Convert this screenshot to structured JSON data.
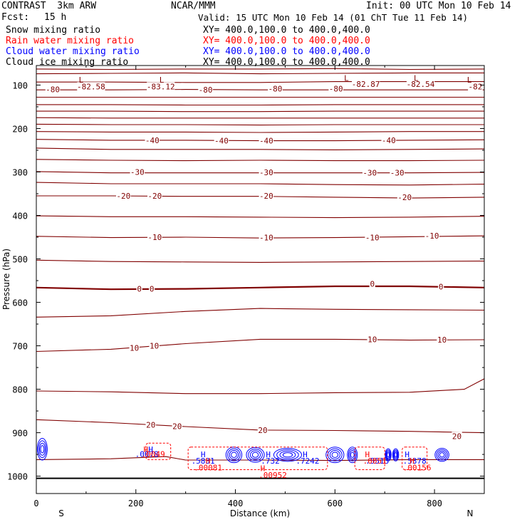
{
  "header": {
    "project": "CONTRAST  3km ARW",
    "org": "NCAR/MMM",
    "init": "Init: 00 UTC Mon 10 Feb 14",
    "fcst_label": "Fcst:",
    "fcst_value": "15 h",
    "valid": "Valid: 15 UTC Mon 10 Feb 14 (01 ChT Tue 11 Feb 14)"
  },
  "legend": [
    {
      "label": "Snow mixing ratio",
      "xy": "XY= 400.0,100.0 to 400.0,400.0",
      "color": "#000000"
    },
    {
      "label": "Rain water mixing ratio",
      "xy": "XY= 400.0,100.0 to 400.0,400.0",
      "color": "#ff0000"
    },
    {
      "label": "Cloud water mixing ratio",
      "xy": "XY= 400.0,100.0 to 400.0,400.0",
      "color": "#0000ff"
    },
    {
      "label": "Cloud ice mixing ratio",
      "xy": "XY= 400.0,100.0 to 400.0,400.0",
      "color": "#000000"
    }
  ],
  "chart_data": {
    "type": "line",
    "title": "",
    "xlabel": "Distance (km)",
    "ylabel": "Pressure (hPa)",
    "xlim": [
      0,
      900
    ],
    "ylim": [
      1040,
      55
    ],
    "x_ticks": [
      0,
      200,
      400,
      600,
      800
    ],
    "y_ticks": [
      100,
      200,
      300,
      400,
      500,
      600,
      700,
      800,
      900,
      1000
    ],
    "x_end_labels": {
      "left": "S",
      "right": "N"
    },
    "series_colors": {
      "temperature": "#800000",
      "cloud": "#0000ff",
      "rain": "#ff0000"
    },
    "contours": [
      {
        "x": [
          0,
          150,
          300,
          450,
          600,
          750,
          900
        ],
        "p": [
          63,
          64,
          63,
          63,
          62,
          64,
          63
        ]
      },
      {
        "x": [
          0,
          150,
          300,
          450,
          600,
          750,
          900
        ],
        "p": [
          74,
          73,
          72,
          74,
          73,
          72,
          72
        ]
      },
      {
        "x": [
          0,
          150,
          300,
          450,
          600,
          750,
          900
        ],
        "p": [
          93,
          93,
          94,
          94,
          92,
          92,
          92
        ]
      },
      {
        "x": [
          0,
          150,
          300,
          450,
          600,
          750,
          900
        ],
        "p": [
          111,
          111,
          110,
          111,
          111,
          111,
          111
        ]
      },
      {
        "x": [
          0,
          150,
          300,
          450,
          600,
          750,
          900
        ],
        "p": [
          128,
          128,
          128,
          128,
          128,
          128,
          128
        ]
      },
      {
        "x": [
          0,
          150,
          300,
          450,
          600,
          750,
          900
        ],
        "p": [
          145,
          145,
          146,
          146,
          145,
          145,
          145
        ]
      },
      {
        "x": [
          0,
          150,
          300,
          450,
          600,
          750,
          900
        ],
        "p": [
          160,
          160,
          161,
          161,
          160,
          160,
          160
        ]
      },
      {
        "x": [
          0,
          150,
          300,
          450,
          600,
          750,
          900
        ],
        "p": [
          175,
          176,
          176,
          176,
          176,
          176,
          176
        ]
      },
      {
        "x": [
          0,
          150,
          300,
          450,
          600,
          750,
          900
        ],
        "p": [
          190,
          191,
          191,
          192,
          191,
          191,
          191
        ]
      },
      {
        "x": [
          0,
          150,
          300,
          450,
          600,
          750,
          900
        ],
        "p": [
          207,
          208,
          208,
          209,
          208,
          207,
          207
        ]
      },
      {
        "x": [
          0,
          150,
          300,
          450,
          600,
          750,
          900
        ],
        "p": [
          225,
          227,
          227,
          228,
          228,
          227,
          226
        ]
      },
      {
        "x": [
          0,
          150,
          300,
          450,
          600,
          750,
          900
        ],
        "p": [
          245,
          248,
          248,
          248,
          249,
          248,
          247
        ]
      },
      {
        "x": [
          0,
          150,
          300,
          450,
          600,
          750,
          900
        ],
        "p": [
          271,
          273,
          274,
          273,
          274,
          274,
          273
        ]
      },
      {
        "x": [
          0,
          150,
          300,
          450,
          600,
          750,
          900
        ],
        "p": [
          299,
          302,
          302,
          302,
          302,
          302,
          301
        ]
      },
      {
        "x": [
          0,
          150,
          300,
          450,
          600,
          750,
          900
        ],
        "p": [
          324,
          327,
          327,
          327,
          329,
          330,
          328
        ]
      },
      {
        "x": [
          0,
          150,
          300,
          450,
          600,
          750,
          900
        ],
        "p": [
          355,
          355,
          356,
          356,
          358,
          360,
          358
        ]
      },
      {
        "x": [
          0,
          150,
          300,
          450,
          600,
          750,
          900
        ],
        "p": [
          401,
          403,
          403,
          404,
          405,
          404,
          402
        ]
      },
      {
        "x": [
          0,
          150,
          300,
          450,
          600,
          750,
          900
        ],
        "p": [
          448,
          451,
          450,
          452,
          451,
          449,
          447
        ]
      },
      {
        "x": [
          0,
          150,
          300,
          450,
          600,
          750,
          900
        ],
        "p": [
          503,
          506,
          507,
          508,
          507,
          506,
          505
        ]
      },
      {
        "x": [
          0,
          150,
          300,
          450,
          600,
          750,
          900
        ],
        "p": [
          566,
          570,
          569,
          566,
          563,
          563,
          566
        ],
        "bold": true
      },
      {
        "x": [
          0,
          150,
          300,
          450,
          600,
          750,
          900
        ],
        "p": [
          634,
          631,
          621,
          614,
          616,
          617,
          618
        ]
      },
      {
        "x": [
          0,
          150,
          300,
          450,
          600,
          750,
          900
        ],
        "p": [
          713,
          708,
          695,
          685,
          685,
          687,
          686
        ]
      },
      {
        "x": [
          0,
          150,
          300,
          450,
          600,
          750,
          860,
          900
        ],
        "p": [
          804,
          806,
          810,
          810,
          808,
          807,
          800,
          776
        ]
      },
      {
        "x": [
          0,
          150,
          300,
          450,
          600,
          750,
          900
        ],
        "p": [
          870,
          877,
          886,
          894,
          895,
          897,
          900
        ]
      },
      {
        "x": [
          0,
          150,
          260,
          300,
          450,
          600,
          750,
          900
        ],
        "p": [
          962,
          960,
          955,
          963,
          963,
          964,
          962,
          962
        ]
      }
    ],
    "contour_labels": [
      {
        "x": 33,
        "p": 110,
        "text": "-80"
      },
      {
        "x": 110,
        "p": 103,
        "text": "-82.58"
      },
      {
        "x": 250,
        "p": 103,
        "text": "-83.12"
      },
      {
        "x": 340,
        "p": 111,
        "text": "-80"
      },
      {
        "x": 480,
        "p": 108,
        "text": "-80"
      },
      {
        "x": 602,
        "p": 108,
        "text": "-80"
      },
      {
        "x": 662,
        "p": 98,
        "text": "-82.87"
      },
      {
        "x": 772,
        "p": 98,
        "text": "-82.54"
      },
      {
        "x": 882,
        "p": 103,
        "text": "-82"
      },
      {
        "x": 233,
        "p": 227,
        "text": "-40"
      },
      {
        "x": 372,
        "p": 228,
        "text": "-40"
      },
      {
        "x": 462,
        "p": 228,
        "text": "-40"
      },
      {
        "x": 708,
        "p": 227,
        "text": "-40"
      },
      {
        "x": 203,
        "p": 300,
        "text": "-30"
      },
      {
        "x": 462,
        "p": 301,
        "text": "-30"
      },
      {
        "x": 670,
        "p": 302,
        "text": "-30"
      },
      {
        "x": 725,
        "p": 302,
        "text": "-30"
      },
      {
        "x": 175,
        "p": 355,
        "text": "-20"
      },
      {
        "x": 238,
        "p": 355,
        "text": "-20"
      },
      {
        "x": 462,
        "p": 355,
        "text": "-20"
      },
      {
        "x": 740,
        "p": 358,
        "text": "-20"
      },
      {
        "x": 238,
        "p": 450,
        "text": "-10"
      },
      {
        "x": 462,
        "p": 451,
        "text": "-10"
      },
      {
        "x": 675,
        "p": 451,
        "text": "-10"
      },
      {
        "x": 795,
        "p": 447,
        "text": "-10"
      },
      {
        "x": 207,
        "p": 569,
        "text": "0"
      },
      {
        "x": 232,
        "p": 569,
        "text": "0"
      },
      {
        "x": 675,
        "p": 557,
        "text": "0"
      },
      {
        "x": 813,
        "p": 564,
        "text": "0"
      },
      {
        "x": 197,
        "p": 705,
        "text": "10"
      },
      {
        "x": 237,
        "p": 700,
        "text": "10"
      },
      {
        "x": 675,
        "p": 685,
        "text": "10"
      },
      {
        "x": 815,
        "p": 686,
        "text": "10"
      },
      {
        "x": 230,
        "p": 882,
        "text": "20"
      },
      {
        "x": 283,
        "p": 885,
        "text": "20"
      },
      {
        "x": 455,
        "p": 894,
        "text": "20"
      },
      {
        "x": 845,
        "p": 908,
        "text": "20"
      }
    ],
    "extrema_labels": [
      {
        "x": 90,
        "p": 88,
        "text": "L"
      },
      {
        "x": 252,
        "p": 88,
        "text": "L"
      },
      {
        "x": 623,
        "p": 84,
        "text": "L"
      },
      {
        "x": 763,
        "p": 84,
        "text": "L"
      },
      {
        "x": 870,
        "p": 88,
        "text": "L"
      }
    ],
    "cloud_labels": [
      {
        "x": 230,
        "p": 938,
        "text": "H",
        "color": "#0000ff"
      },
      {
        "x": 222,
        "p": 949,
        "text": ".0078",
        "color": "#0000ff"
      },
      {
        "x": 335,
        "p": 950,
        "text": "H",
        "color": "#0000ff"
      },
      {
        "x": 335,
        "p": 965,
        "text": ".5831",
        "color": "#0000ff"
      },
      {
        "x": 466,
        "p": 950,
        "text": "H",
        "color": "#0000ff"
      },
      {
        "x": 470,
        "p": 965,
        "text": ".732",
        "color": "#0000ff"
      },
      {
        "x": 540,
        "p": 950,
        "text": "H",
        "color": "#0000ff"
      },
      {
        "x": 545,
        "p": 965,
        "text": ".7242",
        "color": "#0000ff"
      },
      {
        "x": 745,
        "p": 950,
        "text": "H",
        "color": "#0000ff"
      },
      {
        "x": 760,
        "p": 965,
        "text": ".5378",
        "color": "#0000ff"
      },
      {
        "x": 685,
        "p": 965,
        "text": ".5513",
        "color": "#0000ff"
      }
    ],
    "rain_labels": [
      {
        "x": 220,
        "p": 938,
        "text": "H",
        "color": "#ff0000"
      },
      {
        "x": 235,
        "p": 949,
        "text": ".0049",
        "color": "#ff0000"
      },
      {
        "x": 345,
        "p": 965,
        "text": "H",
        "color": "#ff0000"
      },
      {
        "x": 345,
        "p": 980,
        "text": ".00081",
        "color": "#ff0000"
      },
      {
        "x": 455,
        "p": 982,
        "text": "H",
        "color": "#ff0000"
      },
      {
        "x": 475,
        "p": 997,
        "text": ".00952",
        "color": "#ff0000"
      },
      {
        "x": 665,
        "p": 950,
        "text": "H",
        "color": "#ff0000"
      },
      {
        "x": 680,
        "p": 965,
        "text": ".0051",
        "color": "#ff0000"
      },
      {
        "x": 755,
        "p": 965,
        "text": "H",
        "color": "#ff0000"
      },
      {
        "x": 765,
        "p": 980,
        "text": ".00156",
        "color": "#ff0000"
      }
    ],
    "cloud_blobs": [
      {
        "x": 12,
        "p": 938,
        "rx": 10,
        "rp": 25
      },
      {
        "x": 397,
        "p": 951,
        "rx": 16,
        "rp": 18
      },
      {
        "x": 440,
        "p": 951,
        "rx": 18,
        "rp": 17
      },
      {
        "x": 505,
        "p": 951,
        "rx": 28,
        "rp": 15
      },
      {
        "x": 600,
        "p": 951,
        "rx": 18,
        "rp": 18
      },
      {
        "x": 635,
        "p": 951,
        "rx": 10,
        "rp": 18
      },
      {
        "x": 707,
        "p": 951,
        "rx": 6,
        "rp": 14
      },
      {
        "x": 722,
        "p": 951,
        "rx": 6,
        "rp": 14
      },
      {
        "x": 815,
        "p": 951,
        "rx": 14,
        "rp": 15
      }
    ],
    "rain_boxes": [
      {
        "x0": 220,
        "x1": 270,
        "p0": 924,
        "p1": 962
      },
      {
        "x0": 305,
        "x1": 585,
        "p0": 933,
        "p1": 985
      },
      {
        "x0": 640,
        "x1": 700,
        "p0": 933,
        "p1": 985
      },
      {
        "x0": 735,
        "x1": 785,
        "p0": 933,
        "p1": 985
      }
    ],
    "ground_p": 1005
  }
}
